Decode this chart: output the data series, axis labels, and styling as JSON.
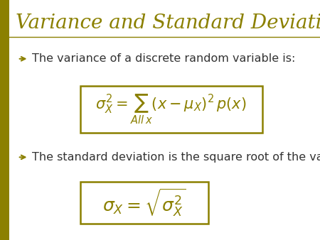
{
  "title": "Variance and Standard Deviation",
  "title_color": "#8B8000",
  "title_fontsize": 20,
  "background_color": "#FFFFFF",
  "left_bar_color": "#8B8000",
  "bullet_color": "#8B8000",
  "text_color": "#333333",
  "formula_border_color": "#8B8000",
  "bullet1_text": "The variance of a discrete random variable is:",
  "bullet2_text": "The standard deviation is the square root of the variance.",
  "formula1": "$\\sigma_X^2 = \\sum_{All\\,x}(x-\\mu_X)^2\\,p(x)$",
  "formula2": "$\\sigma_X = \\sqrt{\\sigma_X^2}$",
  "formula_fontsize": 15,
  "text_fontsize": 11.5
}
